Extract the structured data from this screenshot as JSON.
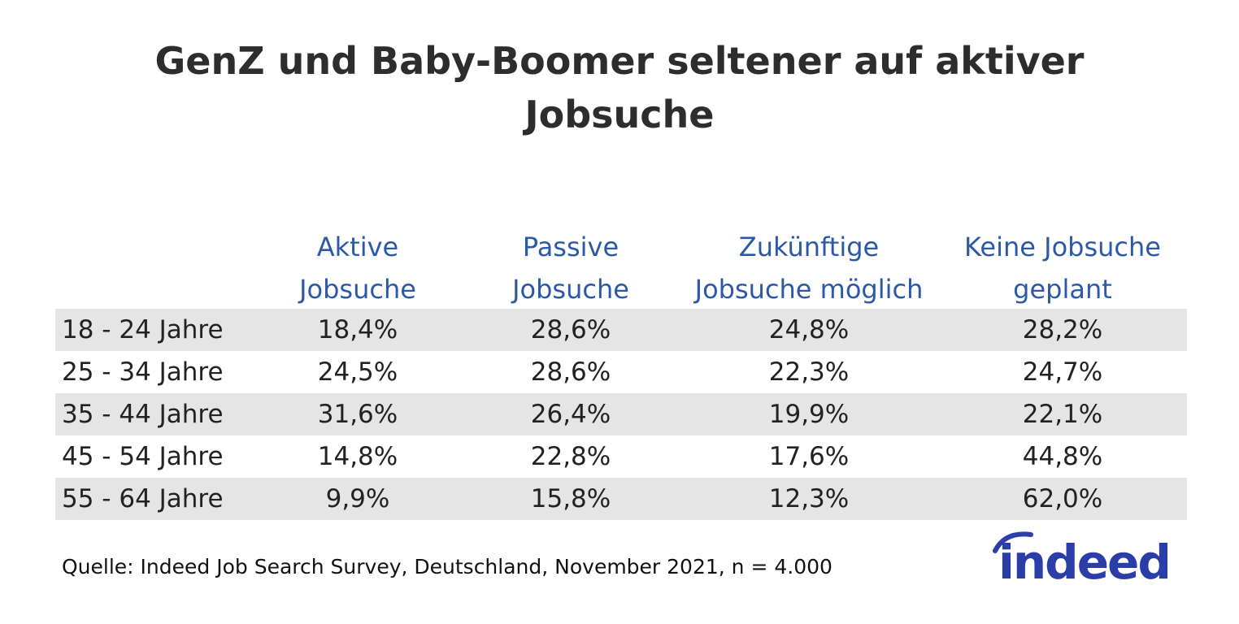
{
  "colors": {
    "header_text": "#2b59a8",
    "row_shade": "#e5e5e5",
    "logo": "#2b3da8"
  },
  "chart_data": {
    "type": "table",
    "title_lines": [
      "GenZ und Baby-Boomer seltener auf aktiver",
      "Jobsuche"
    ],
    "columns": [
      {
        "lines": [
          "Aktive",
          "Jobsuche"
        ]
      },
      {
        "lines": [
          "Passive",
          "Jobsuche"
        ]
      },
      {
        "lines": [
          "Zukünftige",
          "Jobsuche möglich"
        ]
      },
      {
        "lines": [
          "Keine Jobsuche",
          "geplant"
        ]
      }
    ],
    "rows": [
      {
        "label": "18 - 24 Jahre",
        "values": [
          "18,4%",
          "28,6%",
          "24,8%",
          "28,2%"
        ]
      },
      {
        "label": "25 - 34 Jahre",
        "values": [
          "24,5%",
          "28,6%",
          "22,3%",
          "24,7%"
        ]
      },
      {
        "label": "35 - 44 Jahre",
        "values": [
          "31,6%",
          "26,4%",
          "19,9%",
          "22,1%"
        ]
      },
      {
        "label": "45 - 54 Jahre",
        "values": [
          "14,8%",
          "22,8%",
          "17,6%",
          "44,8%"
        ]
      },
      {
        "label": "55 - 64 Jahre",
        "values": [
          "9,9%",
          "15,8%",
          "12,3%",
          "62,0%"
        ]
      }
    ],
    "source": "Quelle: Indeed Job Search Survey, Deutschland, November 2021, n = 4.000"
  },
  "logo": {
    "name": "indeed-logo",
    "text": "indeed"
  }
}
